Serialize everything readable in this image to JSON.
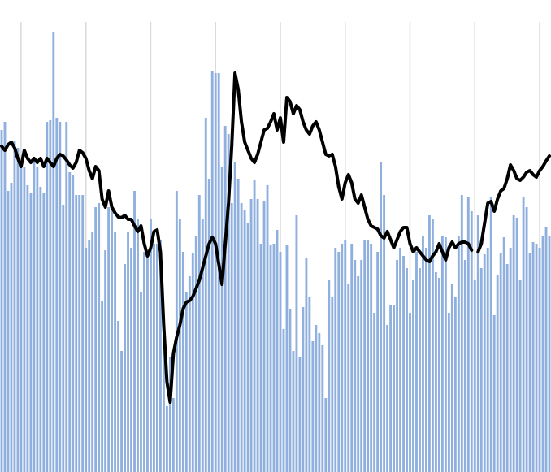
{
  "chart_data": {
    "type": "combo",
    "xlim": [
      0,
      170
    ],
    "xticks": [
      6.5,
      26.5,
      46.5,
      66.5,
      86.5,
      106.5,
      126.5,
      146.5,
      166.5
    ],
    "ylim": [
      0,
      581
    ],
    "grid": "x",
    "series": [
      {
        "type": "bar",
        "color": "#8fb0de",
        "values": [
          421,
          431,
          346,
          356,
          408,
          399,
          381,
          376,
          353,
          343,
          383,
          376,
          351,
          343,
          431,
          433,
          541,
          436,
          431,
          329,
          431,
          369,
          366,
          341,
          341,
          341,
          276,
          286,
          296,
          326,
          331,
          211,
          273,
          326,
          331,
          296,
          186,
          149,
          256,
          296,
          276,
          346,
          311,
          221,
          271,
          271,
          311,
          281,
          281,
          286,
          151,
          81,
          141,
          91,
          346,
          311,
          271,
          221,
          241,
          269,
          291,
          341,
          311,
          436,
          361,
          493,
          491,
          491,
          376,
          426,
          416,
          331,
          381,
          361,
          331,
          323,
          306,
          336,
          359,
          336,
          281,
          333,
          353,
          279,
          281,
          298,
          271,
          176,
          279,
          201,
          149,
          316,
          141,
          203,
          263,
          216,
          161,
          181,
          171,
          156,
          91,
          236,
          216,
          276,
          271,
          281,
          286,
          231,
          281,
          261,
          241,
          261,
          286,
          286,
          281,
          196,
          271,
          381,
          341,
          181,
          206,
          206,
          261,
          276,
          266,
          251,
          196,
          236,
          271,
          251,
          291,
          276,
          316,
          311,
          246,
          239,
          291,
          289,
          196,
          231,
          216,
          291,
          341,
          261,
          338,
          321,
          236,
          316,
          251,
          268,
          276,
          339,
          193,
          243,
          269,
          289,
          256,
          276,
          316,
          313,
          236,
          338,
          326,
          269,
          283,
          281,
          276,
          291,
          301,
          291
        ]
      },
      {
        "type": "line",
        "color": "#000000",
        "values": [
          401,
          396,
          403,
          406,
          399,
          386,
          376,
          396,
          386,
          381,
          386,
          381,
          386,
          376,
          386,
          381,
          376,
          386,
          391,
          389,
          384,
          378,
          374,
          381,
          396,
          393,
          386,
          371,
          361,
          376,
          371,
          336,
          326,
          346,
          326,
          319,
          314,
          313,
          316,
          311,
          311,
          303,
          296,
          303,
          281,
          266,
          276,
          296,
          298,
          271,
          181,
          111,
          86,
          146,
          166,
          181,
          201,
          209,
          211,
          216,
          226,
          236,
          251,
          266,
          281,
          289,
          281,
          256,
          231,
          281,
          331,
          401,
          491,
          471,
          431,
          406,
          396,
          386,
          381,
          391,
          406,
          421,
          423,
          431,
          441,
          421,
          436,
          406,
          461,
          456,
          441,
          451,
          446,
          431,
          421,
          416,
          426,
          431,
          421,
          406,
          391,
          389,
          391,
          376,
          351,
          336,
          356,
          366,
          356,
          336,
          331,
          341,
          326,
          311,
          303,
          301,
          299,
          291,
          288,
          296,
          286,
          276,
          286,
          296,
          301,
          301,
          281,
          271,
          276,
          271,
          266,
          261,
          259,
          266,
          271,
          281,
          271,
          261,
          276,
          283,
          276,
          281,
          283,
          283,
          281,
          273,
          null,
          271,
          281,
          306,
          331,
          333,
          321,
          336,
          346,
          349,
          361,
          378,
          371,
          361,
          359,
          363,
          369,
          371,
          366,
          363,
          371,
          376,
          383,
          389
        ]
      }
    ]
  }
}
